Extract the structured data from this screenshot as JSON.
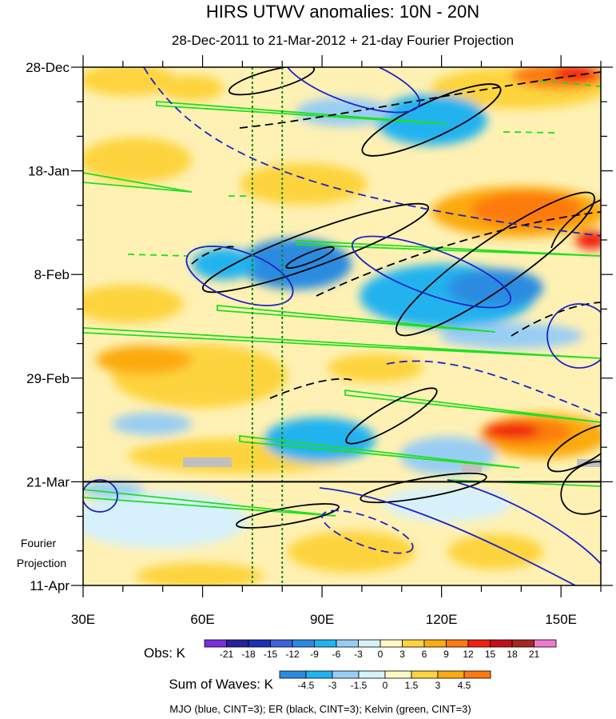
{
  "chart_data": {
    "type": "heatmap",
    "title": "HIRS UTWV anomalies: 10N - 20N",
    "subtitle": "28-Dec-2011 to 21-Mar-2012 + 21-day Fourier Projection",
    "xlabel": "",
    "ylabel": "",
    "x_range_deg": [
      30,
      160
    ],
    "x_ticks": [
      {
        "value": 30,
        "label": "30E"
      },
      {
        "value": 60,
        "label": "60E"
      },
      {
        "value": 90,
        "label": "90E"
      },
      {
        "value": 120,
        "label": "120E"
      },
      {
        "value": 150,
        "label": "150E"
      }
    ],
    "y_range_days": [
      0,
      105
    ],
    "y_ticks": [
      {
        "day": 0,
        "label": "28-Dec"
      },
      {
        "day": 21,
        "label": "18-Jan"
      },
      {
        "day": 42,
        "label": "8-Feb"
      },
      {
        "day": 63,
        "label": "29-Feb"
      },
      {
        "day": 84,
        "label": "21-Mar"
      },
      {
        "day": 105,
        "label": "11-Apr"
      }
    ],
    "projection_start_day": 84,
    "projection_label_1": "Fourier",
    "projection_label_2": "Projection",
    "reference_lons": [
      72.5,
      80
    ],
    "obs_colorbar": {
      "label": "Obs: K",
      "levels": [
        "-21",
        "-18",
        "-15",
        "-12",
        "-9",
        "-6",
        "-3",
        "0",
        "3",
        "6",
        "9",
        "12",
        "15",
        "18",
        "21"
      ],
      "colors": [
        "#7b2fe0",
        "#23239c",
        "#1b2fb8",
        "#3c63d8",
        "#2b8be0",
        "#21b3ef",
        "#98cdf3",
        "#d6f1fb",
        "#fff8c6",
        "#fdd43c",
        "#fcaa10",
        "#fd7a10",
        "#f02010",
        "#c31018",
        "#a52820",
        "#f07ad0"
      ]
    },
    "waves_colorbar": {
      "label": "Sum of Waves: K",
      "levels": [
        "-4.5",
        "-3",
        "-1.5",
        "0",
        "1.5",
        "3",
        "4.5"
      ],
      "colors": [
        "#2b8be0",
        "#21b3ef",
        "#98cdf3",
        "#d6f1fb",
        "#fff8c6",
        "#fdd43c",
        "#fcaa10",
        "#fd7a10"
      ]
    },
    "contour_legend": "MJO (blue, CINT=3); ER (black, CINT=3); Kelvin (green, CINT=3)",
    "series": [
      {
        "name": "MJO",
        "color": "#1c22c8",
        "cint": 3
      },
      {
        "name": "ER",
        "color": "#000000",
        "cint": 3
      },
      {
        "name": "Kelvin",
        "color": "#1ee01e",
        "cint": 3
      }
    ]
  }
}
